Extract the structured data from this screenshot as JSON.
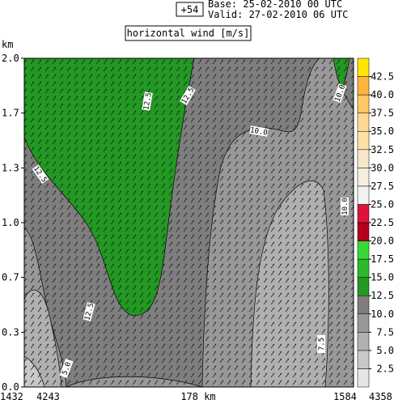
{
  "chart_data": {
    "type": "contour-cross-section",
    "run_label": "+54",
    "base": "Base: 25-02-2010  00 UTC",
    "valid": "Valid: 27-02-2010  06 UTC",
    "title": "horizontal wind [m/s]",
    "y_label": "km",
    "ylim": [
      0,
      2
    ],
    "yticks": [
      {
        "value": 0,
        "label": "0.0"
      },
      {
        "value": 0.333,
        "label": "0.3"
      },
      {
        "value": 0.667,
        "label": "0.7"
      },
      {
        "value": 1,
        "label": "1.0"
      },
      {
        "value": 1.333,
        "label": "1.3"
      },
      {
        "value": 1.667,
        "label": "1.7"
      },
      {
        "value": 2,
        "label": "2.0"
      }
    ],
    "x_labels": [
      "1432",
      "4243",
      "178 km",
      "1584",
      "4358"
    ],
    "contour_labels": [
      "12.5",
      "12.5",
      "12.5",
      "10.0",
      "12.5",
      "10.0",
      "10.0",
      "7.5",
      "5.0"
    ],
    "colorbar": {
      "lim": [
        0,
        45
      ],
      "bounds": [
        0,
        2.5,
        5,
        7.5,
        10,
        12.5,
        15,
        17.5,
        20,
        22.5,
        25,
        27.5,
        30,
        32.5,
        35,
        37.5,
        40,
        42.5,
        45
      ],
      "colors": [
        "#e6e6e6",
        "#c8c8c8",
        "#b0b0b0",
        "#989898",
        "#7e7e7e",
        "#229922",
        "#2db82d",
        "#36d836",
        "#b4001e",
        "#dc143c",
        "#f2f2f2",
        "#f5eee0",
        "#f8e8c8",
        "#fbe0a8",
        "#ffd890",
        "#ffc864",
        "#ffb43c",
        "#ffe600"
      ],
      "ticks": [
        2.5,
        {
          "value": 5,
          "label": "5.0"
        },
        7.5,
        {
          "value": 10,
          "label": "10.0"
        },
        12.5,
        {
          "value": 15,
          "label": "15.0"
        },
        17.5,
        {
          "value": 20,
          "label": "20.0"
        },
        22.5,
        {
          "value": 25,
          "label": "25.0"
        },
        27.5,
        {
          "value": 30,
          "label": "30.0"
        },
        32.5,
        {
          "value": 35,
          "label": "35.0"
        },
        37.5,
        {
          "value": 40,
          "label": "40.0"
        },
        42.5
      ]
    }
  }
}
